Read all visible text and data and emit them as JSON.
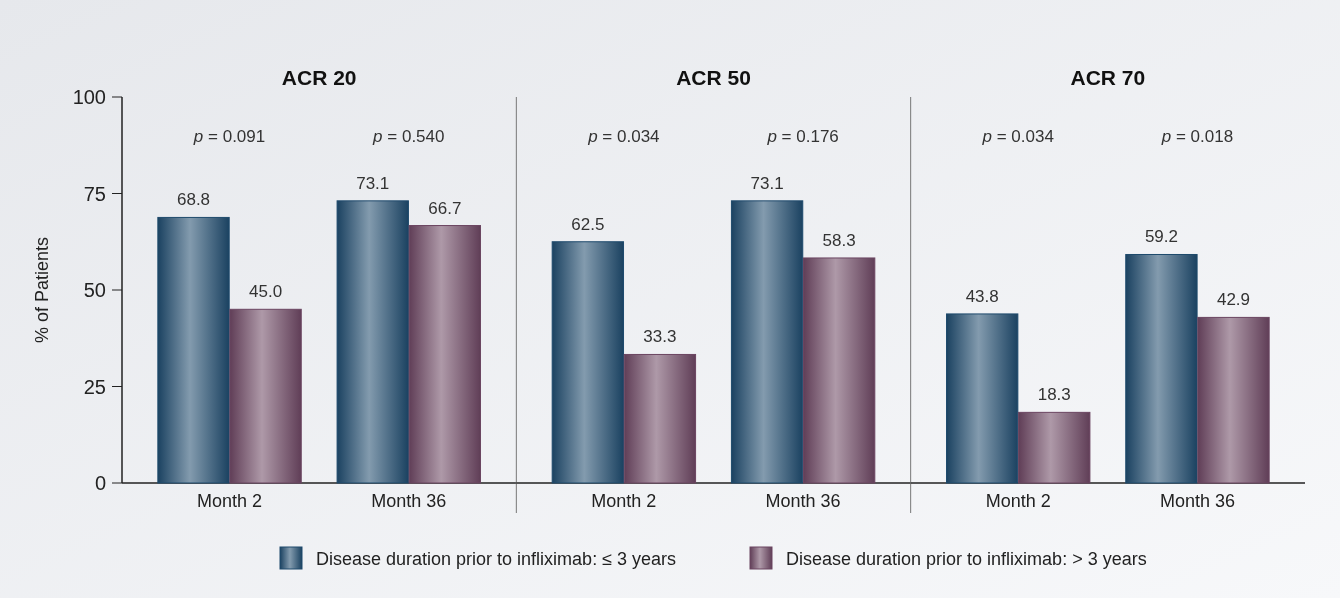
{
  "chart_data": [
    {
      "type": "bar",
      "title": "ACR 20",
      "ylabel": "% of Patients",
      "categories": [
        "Month 2",
        "Month 36"
      ],
      "ylim": [
        0,
        100
      ],
      "yticks": [
        0,
        25,
        50,
        75,
        100
      ],
      "legend": "bottom",
      "series": [
        {
          "name": "Disease duration prior to infliximab: ≤ 3 years",
          "color": "#1e4a6c",
          "values": [
            68.8,
            73.1
          ],
          "value_labels": [
            "68.8",
            "73.1"
          ]
        },
        {
          "name": "Disease duration prior to infliximab: > 3 years",
          "color": "#6b4561",
          "values": [
            45.0,
            66.7
          ],
          "value_labels": [
            "45.0",
            "66.7"
          ]
        }
      ],
      "annotations": [
        "p = 0.091",
        "p = 0.540"
      ]
    },
    {
      "type": "bar",
      "title": "ACR 50",
      "categories": [
        "Month 2",
        "Month 36"
      ],
      "ylim": [
        0,
        100
      ],
      "tick_labels": "x",
      "series": [
        {
          "color": "#1e4a6c",
          "values": [
            62.5,
            73.1
          ],
          "value_labels": [
            "62.5",
            "73.1"
          ]
        },
        {
          "color": "#6b4561",
          "values": [
            33.3,
            58.3
          ],
          "value_labels": [
            "33.3",
            "58.3"
          ]
        }
      ],
      "annotations": [
        "p = 0.034",
        "p = 0.176"
      ]
    },
    {
      "type": "bar",
      "title": "ACR 70",
      "categories": [
        "Month 2",
        "Month 36"
      ],
      "ylim": [
        0,
        100
      ],
      "tick_labels": "x",
      "series": [
        {
          "color": "#1e4a6c",
          "values": [
            43.8,
            59.2
          ],
          "value_labels": [
            "43.8",
            "59.2"
          ]
        },
        {
          "color": "#6b4561",
          "values": [
            18.3,
            42.9
          ],
          "value_labels": [
            "18.3",
            "42.9"
          ]
        }
      ],
      "annotations": [
        "p = 0.034",
        "p = 0.018"
      ]
    }
  ]
}
